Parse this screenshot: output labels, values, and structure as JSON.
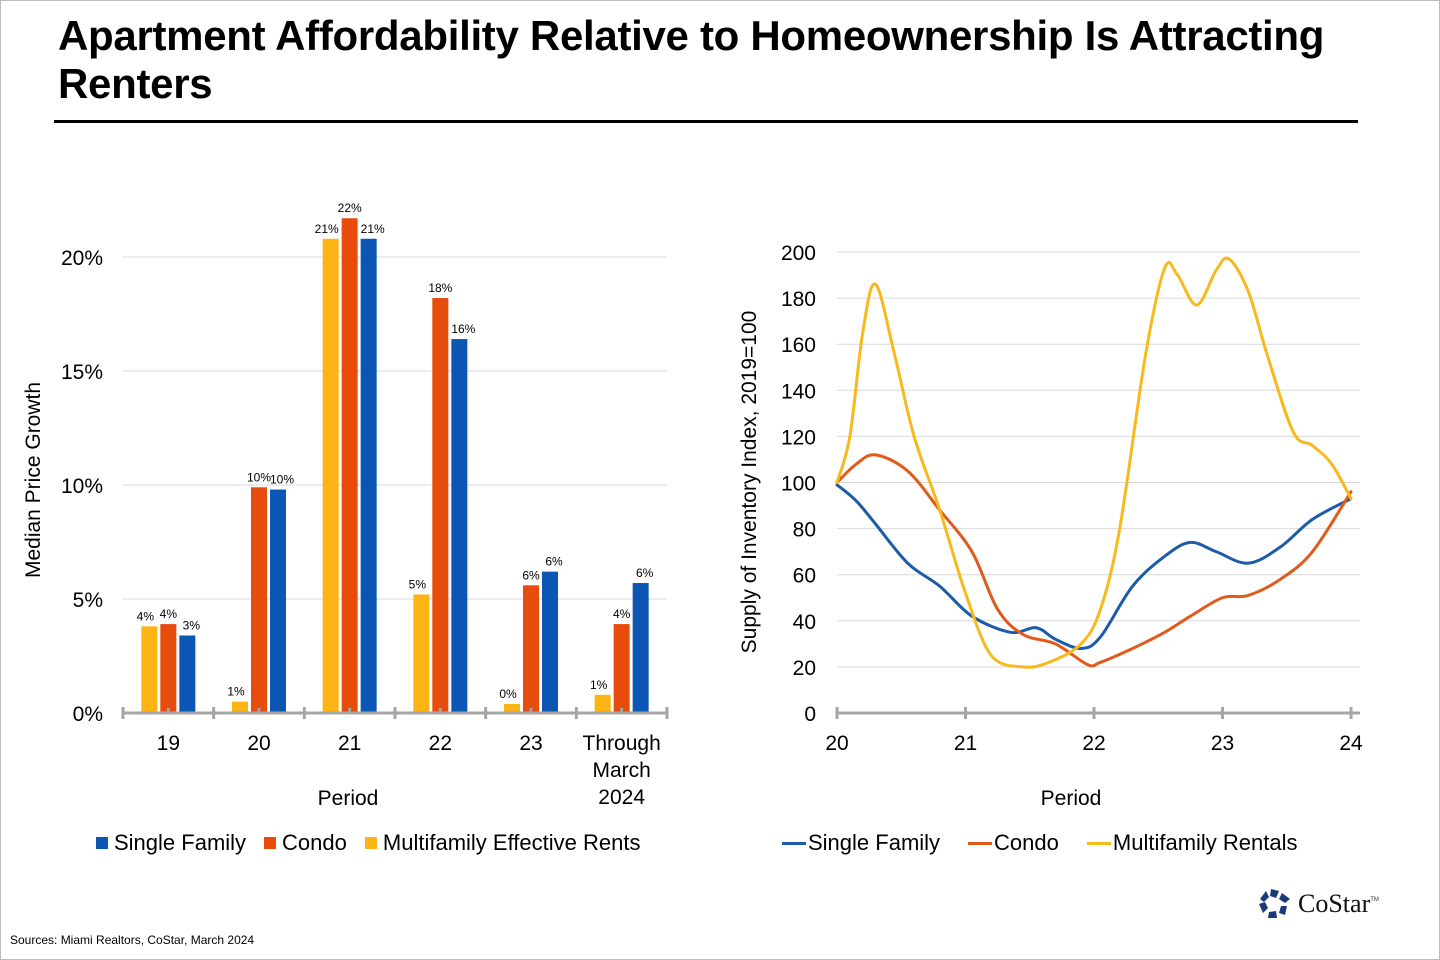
{
  "slide": {
    "title": "Apartment Affordability Relative to Homeownership Is Attracting Renters",
    "sources": "Sources: Miami Realtors, CoStar, March 2024",
    "logo_text": "CoStar",
    "logo_tm": "TM"
  },
  "colors": {
    "single_family": "#0B56B2",
    "condo": "#E84C0C",
    "multifamily": "#FDB515",
    "line_single_family": "#1B5BA8",
    "line_condo": "#E05A1A",
    "line_multifamily": "#F8B91C",
    "gridline": "#d9d9d9",
    "axis": "#a6a6a6"
  },
  "chart_data": [
    {
      "type": "bar",
      "title": "",
      "xlabel": "Period",
      "ylabel": "Median Price Growth",
      "categories": [
        "19",
        "20",
        "21",
        "22",
        "23",
        "Through March 2024"
      ],
      "category_lines": [
        [
          "19"
        ],
        [
          "20"
        ],
        [
          "21"
        ],
        [
          "22"
        ],
        [
          "23"
        ],
        [
          "Through",
          "March",
          "2024"
        ]
      ],
      "ylim": [
        0,
        20
      ],
      "yticks": [
        0,
        5,
        10,
        15,
        20
      ],
      "ytick_labels": [
        "0%",
        "5%",
        "10%",
        "15%",
        "20%"
      ],
      "grid": true,
      "legend_position": "bottom",
      "series": [
        {
          "name": "Multifamily Effective Rents",
          "key": "multifamily",
          "values": [
            3.8,
            0.5,
            20.8,
            5.2,
            0.4,
            0.8
          ],
          "labels": [
            "4%",
            "1%",
            "21%",
            "5%",
            "0%",
            "1%"
          ]
        },
        {
          "name": "Condo",
          "key": "condo",
          "values": [
            3.9,
            9.9,
            21.7,
            18.2,
            5.6,
            3.9
          ],
          "labels": [
            "4%",
            "10%",
            "22%",
            "18%",
            "6%",
            "4%"
          ]
        },
        {
          "name": "Single Family",
          "key": "single_family",
          "values": [
            3.4,
            9.8,
            20.8,
            16.4,
            6.2,
            5.7
          ],
          "labels": [
            "3%",
            "10%",
            "21%",
            "16%",
            "6%",
            "6%"
          ]
        }
      ],
      "legend": [
        {
          "name": "Single Family",
          "key": "single_family"
        },
        {
          "name": "Condo",
          "key": "condo"
        },
        {
          "name": "Multifamily Effective Rents",
          "key": "multifamily"
        }
      ]
    },
    {
      "type": "line",
      "title": "",
      "xlabel": "Period",
      "ylabel": "Supply of Inventory Index, 2019=100",
      "xlim": [
        20,
        24
      ],
      "xticks": [
        20,
        21,
        22,
        23,
        24
      ],
      "xtick_labels": [
        "20",
        "21",
        "22",
        "23",
        "24"
      ],
      "ylim": [
        0,
        200
      ],
      "yticks": [
        0,
        20,
        40,
        60,
        80,
        100,
        120,
        140,
        160,
        180,
        200
      ],
      "grid": true,
      "legend_position": "bottom",
      "series": [
        {
          "name": "Single Family",
          "key": "line_single_family",
          "x": [
            20.0,
            20.15,
            20.3,
            20.55,
            20.8,
            21.05,
            21.35,
            21.55,
            21.7,
            21.9,
            22.05,
            22.3,
            22.55,
            22.75,
            22.95,
            23.2,
            23.45,
            23.7,
            24.0
          ],
          "y": [
            99,
            92,
            82,
            65,
            55,
            42,
            35,
            37,
            32,
            28,
            33,
            55,
            68,
            74,
            70,
            65,
            72,
            84,
            93
          ]
        },
        {
          "name": "Condo",
          "key": "line_condo",
          "x": [
            20.0,
            20.15,
            20.3,
            20.55,
            20.8,
            21.05,
            21.25,
            21.45,
            21.7,
            21.95,
            22.05,
            22.3,
            22.55,
            22.75,
            23.0,
            23.2,
            23.45,
            23.7,
            24.0
          ],
          "y": [
            100,
            108,
            112,
            105,
            88,
            70,
            45,
            34,
            30,
            21,
            22,
            28,
            35,
            42,
            50,
            51,
            58,
            70,
            96
          ]
        },
        {
          "name": "Multifamily Rentals",
          "key": "line_multifamily",
          "x": [
            20.0,
            20.1,
            20.2,
            20.3,
            20.45,
            20.6,
            20.8,
            21.0,
            21.2,
            21.45,
            21.65,
            21.9,
            22.05,
            22.2,
            22.4,
            22.55,
            22.65,
            22.8,
            22.95,
            23.05,
            23.2,
            23.35,
            23.55,
            23.7,
            23.85,
            24.0
          ],
          "y": [
            100,
            120,
            165,
            186,
            155,
            120,
            88,
            52,
            25,
            20,
            22,
            30,
            45,
            80,
            155,
            193,
            190,
            177,
            192,
            197,
            183,
            155,
            122,
            116,
            108,
            93
          ]
        }
      ],
      "legend": [
        {
          "name": "Single Family",
          "key": "line_single_family"
        },
        {
          "name": "Condo",
          "key": "line_condo"
        },
        {
          "name": "Multifamily Rentals",
          "key": "line_multifamily"
        }
      ]
    }
  ]
}
